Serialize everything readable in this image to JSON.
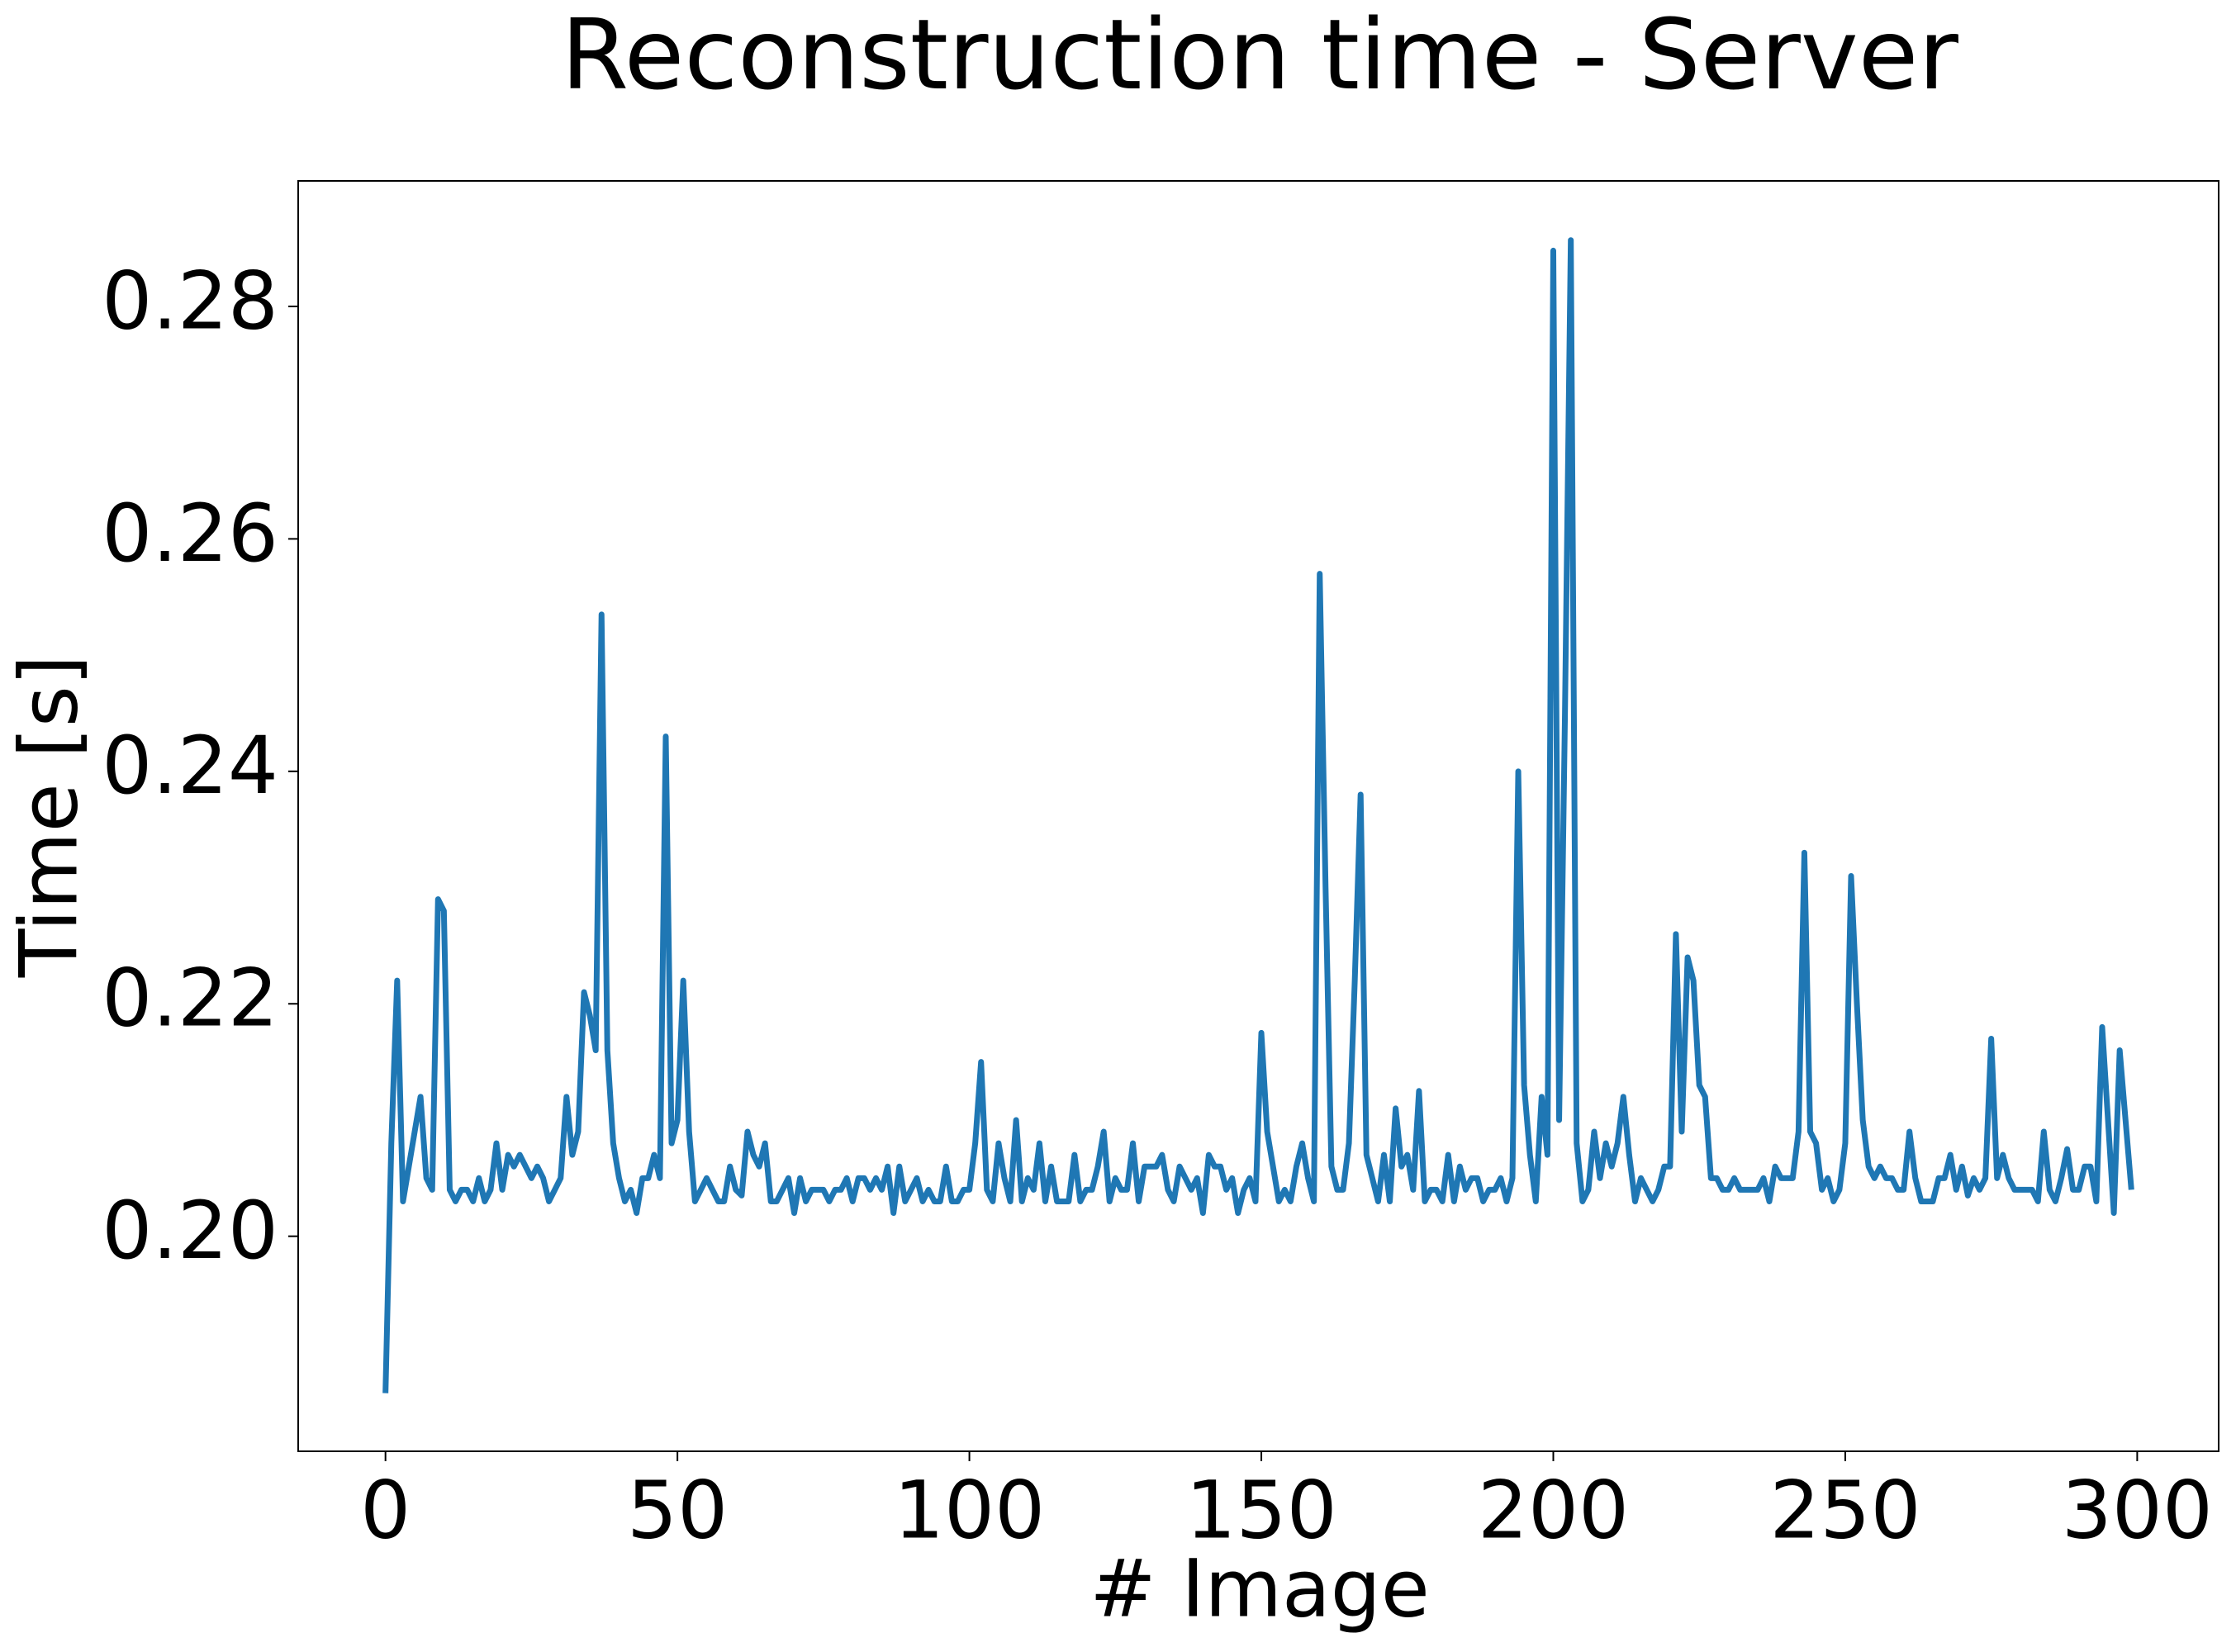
{
  "chart_data": {
    "type": "line",
    "title": "Reconstruction time - Server",
    "x_label": "# Image",
    "y_label": "Time [s]",
    "x": [
      0,
      1,
      2,
      3,
      4,
      5,
      6,
      7,
      8,
      9,
      10,
      11,
      12,
      13,
      14,
      15,
      16,
      17,
      18,
      19,
      20,
      21,
      22,
      23,
      24,
      25,
      26,
      27,
      28,
      29,
      30,
      31,
      32,
      33,
      34,
      35,
      36,
      37,
      38,
      39,
      40,
      41,
      42,
      43,
      44,
      45,
      46,
      47,
      48,
      49,
      50,
      51,
      52,
      53,
      54,
      55,
      56,
      57,
      58,
      59,
      60,
      61,
      62,
      63,
      64,
      65,
      66,
      67,
      68,
      69,
      70,
      71,
      72,
      73,
      74,
      75,
      76,
      77,
      78,
      79,
      80,
      81,
      82,
      83,
      84,
      85,
      86,
      87,
      88,
      89,
      90,
      91,
      92,
      93,
      94,
      95,
      96,
      97,
      98,
      99,
      100,
      101,
      102,
      103,
      104,
      105,
      106,
      107,
      108,
      109,
      110,
      111,
      112,
      113,
      114,
      115,
      116,
      117,
      118,
      119,
      120,
      121,
      122,
      123,
      124,
      125,
      126,
      127,
      128,
      129,
      130,
      131,
      132,
      133,
      134,
      135,
      136,
      137,
      138,
      139,
      140,
      141,
      142,
      143,
      144,
      145,
      146,
      147,
      148,
      149,
      150,
      151,
      152,
      153,
      154,
      155,
      156,
      157,
      158,
      159,
      160,
      161,
      162,
      163,
      164,
      165,
      166,
      167,
      168,
      169,
      170,
      171,
      172,
      173,
      174,
      175,
      176,
      177,
      178,
      179,
      180,
      181,
      182,
      183,
      184,
      185,
      186,
      187,
      188,
      189,
      190,
      191,
      192,
      193,
      194,
      195,
      196,
      197,
      198,
      199,
      200,
      201,
      202,
      203,
      204,
      205,
      206,
      207,
      208,
      209,
      210,
      211,
      212,
      213,
      214,
      215,
      216,
      217,
      218,
      219,
      220,
      221,
      222,
      223,
      224,
      225,
      226,
      227,
      228,
      229,
      230,
      231,
      232,
      233,
      234,
      235,
      236,
      237,
      238,
      239,
      240,
      241,
      242,
      243,
      244,
      245,
      246,
      247,
      248,
      249,
      250,
      251,
      252,
      253,
      254,
      255,
      256,
      257,
      258,
      259,
      260,
      261,
      262,
      263,
      264,
      265,
      266,
      267,
      268,
      269,
      270,
      271,
      272,
      273,
      274,
      275,
      276,
      277,
      278,
      279,
      280,
      281,
      282,
      283,
      284,
      285,
      286,
      287,
      288,
      289,
      290,
      291,
      292,
      293,
      294,
      295,
      296,
      297,
      298,
      299
    ],
    "series": [
      {
        "color": "#1f77b4",
        "values": [
          0.1865,
          0.208,
          0.222,
          0.203,
          0.206,
          0.209,
          0.212,
          0.205,
          0.204,
          0.229,
          0.228,
          0.204,
          0.203,
          0.204,
          0.204,
          0.203,
          0.205,
          0.203,
          0.204,
          0.208,
          0.204,
          0.207,
          0.206,
          0.207,
          0.206,
          0.205,
          0.206,
          0.205,
          0.203,
          0.204,
          0.205,
          0.212,
          0.207,
          0.209,
          0.221,
          0.219,
          0.216,
          0.2535,
          0.216,
          0.208,
          0.205,
          0.203,
          0.204,
          0.202,
          0.205,
          0.205,
          0.207,
          0.205,
          0.243,
          0.208,
          0.21,
          0.222,
          0.209,
          0.203,
          0.204,
          0.205,
          0.204,
          0.203,
          0.203,
          0.206,
          0.204,
          0.2035,
          0.209,
          0.207,
          0.206,
          0.208,
          0.203,
          0.203,
          0.204,
          0.205,
          0.202,
          0.205,
          0.203,
          0.204,
          0.204,
          0.204,
          0.203,
          0.204,
          0.204,
          0.205,
          0.203,
          0.205,
          0.205,
          0.204,
          0.205,
          0.204,
          0.206,
          0.202,
          0.206,
          0.203,
          0.204,
          0.205,
          0.203,
          0.204,
          0.203,
          0.203,
          0.206,
          0.203,
          0.203,
          0.204,
          0.204,
          0.208,
          0.215,
          0.204,
          0.203,
          0.208,
          0.205,
          0.203,
          0.21,
          0.203,
          0.205,
          0.204,
          0.208,
          0.203,
          0.206,
          0.203,
          0.203,
          0.203,
          0.207,
          0.203,
          0.204,
          0.204,
          0.206,
          0.209,
          0.203,
          0.205,
          0.204,
          0.204,
          0.208,
          0.203,
          0.206,
          0.206,
          0.206,
          0.207,
          0.204,
          0.203,
          0.206,
          0.205,
          0.204,
          0.205,
          0.202,
          0.207,
          0.206,
          0.206,
          0.204,
          0.205,
          0.202,
          0.204,
          0.205,
          0.203,
          0.2175,
          0.209,
          0.206,
          0.203,
          0.204,
          0.203,
          0.206,
          0.208,
          0.205,
          0.203,
          0.257,
          0.23,
          0.206,
          0.204,
          0.204,
          0.208,
          0.222,
          0.238,
          0.207,
          0.205,
          0.203,
          0.207,
          0.203,
          0.211,
          0.206,
          0.207,
          0.204,
          0.2125,
          0.203,
          0.204,
          0.204,
          0.203,
          0.207,
          0.203,
          0.206,
          0.204,
          0.205,
          0.205,
          0.203,
          0.204,
          0.204,
          0.205,
          0.203,
          0.205,
          0.24,
          0.213,
          0.207,
          0.203,
          0.212,
          0.207,
          0.2848,
          0.21,
          0.245,
          0.2857,
          0.208,
          0.203,
          0.204,
          0.209,
          0.205,
          0.208,
          0.206,
          0.208,
          0.212,
          0.207,
          0.203,
          0.205,
          0.204,
          0.203,
          0.204,
          0.206,
          0.206,
          0.226,
          0.209,
          0.224,
          0.222,
          0.213,
          0.212,
          0.205,
          0.205,
          0.204,
          0.204,
          0.205,
          0.204,
          0.204,
          0.204,
          0.204,
          0.205,
          0.203,
          0.206,
          0.205,
          0.205,
          0.205,
          0.209,
          0.233,
          0.209,
          0.208,
          0.204,
          0.205,
          0.203,
          0.204,
          0.208,
          0.231,
          0.22,
          0.21,
          0.206,
          0.205,
          0.206,
          0.205,
          0.205,
          0.204,
          0.204,
          0.209,
          0.205,
          0.203,
          0.203,
          0.203,
          0.205,
          0.205,
          0.207,
          0.204,
          0.206,
          0.2035,
          0.205,
          0.204,
          0.205,
          0.217,
          0.205,
          0.207,
          0.205,
          0.204,
          0.204,
          0.204,
          0.204,
          0.203,
          0.209,
          0.204,
          0.203,
          0.205,
          0.2075,
          0.204,
          0.204,
          0.206,
          0.206,
          0.203,
          0.218,
          0.21,
          0.202,
          0.216,
          0.21,
          0.204
        ]
      }
    ],
    "xlim": [
      -14.95,
      313.95
    ],
    "ylim": [
      0.1815,
      0.2908
    ],
    "xticks": [
      0,
      50,
      100,
      150,
      200,
      250,
      300
    ],
    "yticks": [
      {
        "value": 0.2,
        "label": "0.20"
      },
      0.22,
      0.24,
      0.26,
      0.28
    ],
    "grid": false
  }
}
